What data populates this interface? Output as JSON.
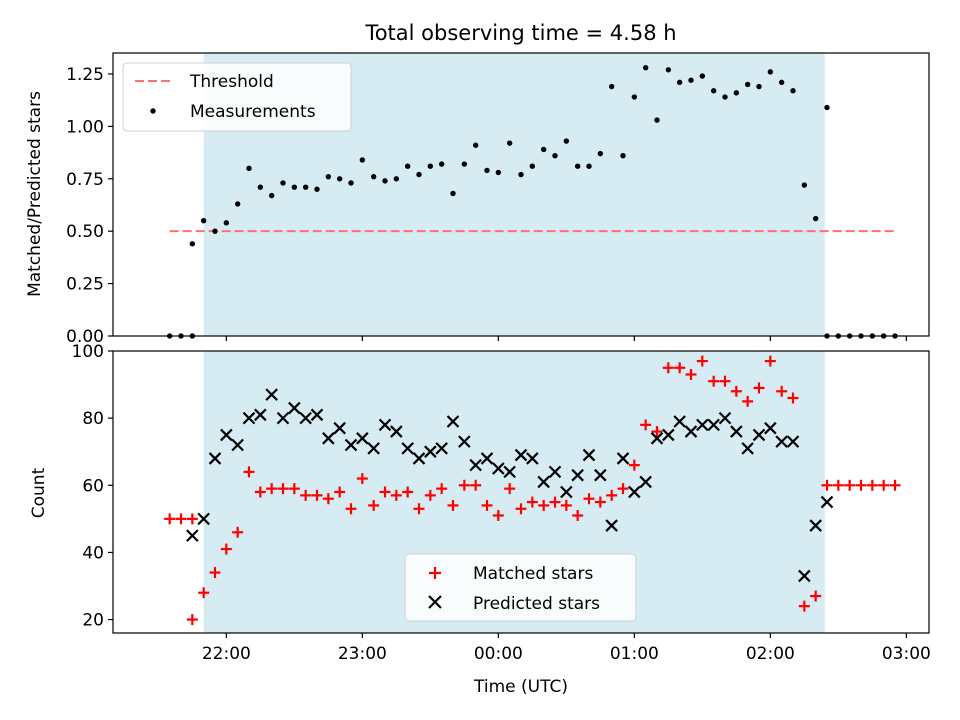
{
  "chart_data": [
    {
      "type": "scatter",
      "title": "Total observing time = 4.58 h",
      "xlabel": "",
      "ylabel": "Matched/Predicted stars",
      "ylim": [
        0,
        1.35
      ],
      "yticks": [
        0.0,
        0.25,
        0.5,
        0.75,
        1.0,
        1.25
      ],
      "ytick_labels": [
        "0.00",
        "0.25",
        "0.50",
        "0.75",
        "1.00",
        "1.25"
      ],
      "observing_window": [
        "21:50",
        "02:24"
      ],
      "threshold": {
        "name": "Threshold",
        "y": 0.5,
        "x": [
          "21:35",
          "02:55"
        ],
        "color": "#ff7070"
      },
      "legend": {
        "position": "upper-left"
      },
      "series": [
        {
          "name": "Measurements",
          "color": "#000000",
          "points": [
            [
              "21:35",
              0
            ],
            [
              "21:40",
              0
            ],
            [
              "21:45",
              0
            ],
            [
              "21:45",
              0.44
            ],
            [
              "21:50",
              0.55
            ],
            [
              "21:55",
              0.5
            ],
            [
              "22:00",
              0.54
            ],
            [
              "22:05",
              0.63
            ],
            [
              "22:10",
              0.8
            ],
            [
              "22:15",
              0.71
            ],
            [
              "22:20",
              0.67
            ],
            [
              "22:25",
              0.73
            ],
            [
              "22:30",
              0.71
            ],
            [
              "22:35",
              0.71
            ],
            [
              "22:40",
              0.7
            ],
            [
              "22:45",
              0.76
            ],
            [
              "22:50",
              0.75
            ],
            [
              "22:55",
              0.73
            ],
            [
              "23:00",
              0.84
            ],
            [
              "23:05",
              0.76
            ],
            [
              "23:10",
              0.74
            ],
            [
              "23:15",
              0.75
            ],
            [
              "23:20",
              0.81
            ],
            [
              "23:25",
              0.77
            ],
            [
              "23:30",
              0.81
            ],
            [
              "23:35",
              0.82
            ],
            [
              "23:40",
              0.68
            ],
            [
              "23:45",
              0.82
            ],
            [
              "23:50",
              0.91
            ],
            [
              "23:55",
              0.79
            ],
            [
              "00:00",
              0.78
            ],
            [
              "00:05",
              0.92
            ],
            [
              "00:10",
              0.77
            ],
            [
              "00:15",
              0.81
            ],
            [
              "00:20",
              0.89
            ],
            [
              "00:25",
              0.86
            ],
            [
              "00:30",
              0.93
            ],
            [
              "00:35",
              0.81
            ],
            [
              "00:40",
              0.81
            ],
            [
              "00:45",
              0.87
            ],
            [
              "00:50",
              1.19
            ],
            [
              "00:55",
              0.86
            ],
            [
              "01:00",
              1.14
            ],
            [
              "01:05",
              1.28
            ],
            [
              "01:10",
              1.03
            ],
            [
              "01:15",
              1.27
            ],
            [
              "01:20",
              1.21
            ],
            [
              "01:25",
              1.22
            ],
            [
              "01:30",
              1.24
            ],
            [
              "01:35",
              1.17
            ],
            [
              "01:40",
              1.14
            ],
            [
              "01:45",
              1.16
            ],
            [
              "01:50",
              1.2
            ],
            [
              "01:55",
              1.19
            ],
            [
              "02:00",
              1.26
            ],
            [
              "02:05",
              1.21
            ],
            [
              "02:10",
              1.17
            ],
            [
              "02:15",
              0.72
            ],
            [
              "02:20",
              0.56
            ],
            [
              "02:25",
              1.09
            ],
            [
              "02:25",
              0
            ],
            [
              "02:30",
              0
            ],
            [
              "02:35",
              0
            ],
            [
              "02:40",
              0
            ],
            [
              "02:45",
              0
            ],
            [
              "02:50",
              0
            ],
            [
              "02:55",
              0
            ]
          ]
        }
      ]
    },
    {
      "type": "scatter",
      "title": "",
      "xlabel": "Time (UTC)",
      "ylabel": "Count",
      "ylim": [
        16,
        100
      ],
      "yticks": [
        20,
        40,
        60,
        80,
        100
      ],
      "ytick_labels": [
        "20",
        "40",
        "60",
        "80",
        "100"
      ],
      "xticks": [
        "22:00",
        "23:00",
        "00:00",
        "01:00",
        "02:00",
        "03:00"
      ],
      "observing_window": [
        "21:50",
        "02:24"
      ],
      "legend": {
        "position": "lower-center"
      },
      "series": [
        {
          "name": "Matched stars",
          "marker": "plus",
          "color": "#ff0000",
          "points": [
            [
              "21:35",
              50
            ],
            [
              "21:40",
              50
            ],
            [
              "21:45",
              50
            ],
            [
              "21:45",
              20
            ],
            [
              "21:50",
              28
            ],
            [
              "21:55",
              34
            ],
            [
              "22:00",
              41
            ],
            [
              "22:05",
              46
            ],
            [
              "22:10",
              64
            ],
            [
              "22:15",
              58
            ],
            [
              "22:20",
              59
            ],
            [
              "22:25",
              59
            ],
            [
              "22:30",
              59
            ],
            [
              "22:35",
              57
            ],
            [
              "22:40",
              57
            ],
            [
              "22:45",
              56
            ],
            [
              "22:50",
              58
            ],
            [
              "22:55",
              53
            ],
            [
              "23:00",
              62
            ],
            [
              "23:05",
              54
            ],
            [
              "23:10",
              58
            ],
            [
              "23:15",
              57
            ],
            [
              "23:20",
              58
            ],
            [
              "23:25",
              53
            ],
            [
              "23:30",
              57
            ],
            [
              "23:35",
              59
            ],
            [
              "23:40",
              54
            ],
            [
              "23:45",
              60
            ],
            [
              "23:50",
              60
            ],
            [
              "23:55",
              54
            ],
            [
              "00:00",
              51
            ],
            [
              "00:05",
              59
            ],
            [
              "00:10",
              53
            ],
            [
              "00:15",
              55
            ],
            [
              "00:20",
              54
            ],
            [
              "00:25",
              55
            ],
            [
              "00:30",
              54
            ],
            [
              "00:35",
              51
            ],
            [
              "00:40",
              56
            ],
            [
              "00:45",
              55
            ],
            [
              "00:50",
              57
            ],
            [
              "00:55",
              59
            ],
            [
              "01:00",
              66
            ],
            [
              "01:05",
              78
            ],
            [
              "01:10",
              76
            ],
            [
              "01:15",
              95
            ],
            [
              "01:20",
              95
            ],
            [
              "01:25",
              93
            ],
            [
              "01:30",
              97
            ],
            [
              "01:35",
              91
            ],
            [
              "01:40",
              91
            ],
            [
              "01:45",
              88
            ],
            [
              "01:50",
              85
            ],
            [
              "01:55",
              89
            ],
            [
              "02:00",
              97
            ],
            [
              "02:05",
              88
            ],
            [
              "02:10",
              86
            ],
            [
              "02:15",
              24
            ],
            [
              "02:20",
              27
            ],
            [
              "02:25",
              60
            ],
            [
              "02:30",
              60
            ],
            [
              "02:35",
              60
            ],
            [
              "02:40",
              60
            ],
            [
              "02:45",
              60
            ],
            [
              "02:50",
              60
            ],
            [
              "02:55",
              60
            ]
          ]
        },
        {
          "name": "Predicted stars",
          "marker": "cross",
          "color": "#000000",
          "points": [
            [
              "21:45",
              45
            ],
            [
              "21:50",
              50
            ],
            [
              "21:55",
              68
            ],
            [
              "22:00",
              75
            ],
            [
              "22:05",
              72
            ],
            [
              "22:10",
              80
            ],
            [
              "22:15",
              81
            ],
            [
              "22:20",
              87
            ],
            [
              "22:25",
              80
            ],
            [
              "22:30",
              83
            ],
            [
              "22:35",
              80
            ],
            [
              "22:40",
              81
            ],
            [
              "22:45",
              74
            ],
            [
              "22:50",
              77
            ],
            [
              "22:55",
              72
            ],
            [
              "23:00",
              74
            ],
            [
              "23:05",
              71
            ],
            [
              "23:10",
              78
            ],
            [
              "23:15",
              76
            ],
            [
              "23:20",
              71
            ],
            [
              "23:25",
              68
            ],
            [
              "23:30",
              70
            ],
            [
              "23:35",
              71
            ],
            [
              "23:40",
              79
            ],
            [
              "23:45",
              73
            ],
            [
              "23:50",
              66
            ],
            [
              "23:55",
              68
            ],
            [
              "00:00",
              65
            ],
            [
              "00:05",
              64
            ],
            [
              "00:10",
              69
            ],
            [
              "00:15",
              68
            ],
            [
              "00:20",
              61
            ],
            [
              "00:25",
              64
            ],
            [
              "00:30",
              58
            ],
            [
              "00:35",
              63
            ],
            [
              "00:40",
              69
            ],
            [
              "00:45",
              63
            ],
            [
              "00:50",
              48
            ],
            [
              "00:55",
              68
            ],
            [
              "01:00",
              58
            ],
            [
              "01:05",
              61
            ],
            [
              "01:10",
              74
            ],
            [
              "01:15",
              75
            ],
            [
              "01:20",
              79
            ],
            [
              "01:25",
              76
            ],
            [
              "01:30",
              78
            ],
            [
              "01:35",
              78
            ],
            [
              "01:40",
              80
            ],
            [
              "01:45",
              76
            ],
            [
              "01:50",
              71
            ],
            [
              "01:55",
              75
            ],
            [
              "02:00",
              77
            ],
            [
              "02:05",
              73
            ],
            [
              "02:10",
              73
            ],
            [
              "02:15",
              33
            ],
            [
              "02:20",
              48
            ],
            [
              "02:25",
              55
            ]
          ]
        }
      ]
    }
  ]
}
